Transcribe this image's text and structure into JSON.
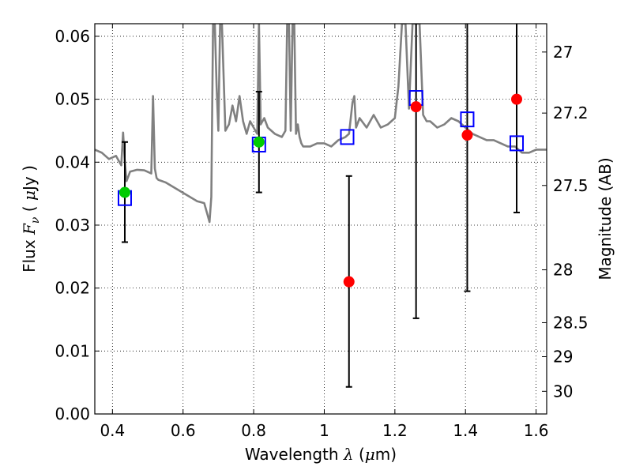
{
  "chart_data": {
    "type": "scatter",
    "xlabel": "Wavelength  λ (μm)",
    "ylabel": "Flux  F_ν  ( μJy )",
    "ylabel_parts": {
      "prefix": "Flux  ",
      "symbol": "F",
      "subscript": "ν",
      "open": "  ( ",
      "mu": "μ",
      "unit": "Jy )"
    },
    "xlabel_parts": {
      "prefix": "Wavelength  ",
      "symbol": "λ",
      "open": " (",
      "mu": "μ",
      "unit": "m)"
    },
    "y2label": "Magnitude (AB)",
    "xlim": [
      0.35,
      1.63
    ],
    "ylim": [
      0.0,
      0.062
    ],
    "xticks": [
      0.4,
      0.6,
      0.8,
      1.0,
      1.2,
      1.4,
      1.6
    ],
    "xtick_labels": [
      "0.4",
      "0.6",
      "0.8",
      "1",
      "1.2",
      "1.4",
      "1.6"
    ],
    "yticks": [
      0.0,
      0.01,
      0.02,
      0.03,
      0.04,
      0.05,
      0.06
    ],
    "ytick_labels": [
      "0.00",
      "0.01",
      "0.02",
      "0.03",
      "0.04",
      "0.05",
      "0.06"
    ],
    "magnitude_ticks": [
      {
        "label": "27",
        "flux": 0.0575
      },
      {
        "label": "27.2",
        "flux": 0.0478
      },
      {
        "label": "27.5",
        "flux": 0.0363
      },
      {
        "label": "28",
        "flux": 0.0229
      },
      {
        "label": "28.5",
        "flux": 0.0145
      },
      {
        "label": "29",
        "flux": 0.0091
      },
      {
        "label": "30",
        "flux": 0.0036
      }
    ],
    "grid": true,
    "series": [
      {
        "kind": "model_spectrum",
        "color": "#808080",
        "x": [
          0.35,
          0.37,
          0.39,
          0.41,
          0.425,
          0.43,
          0.435,
          0.44,
          0.45,
          0.47,
          0.49,
          0.51,
          0.515,
          0.52,
          0.525,
          0.53,
          0.55,
          0.58,
          0.61,
          0.64,
          0.66,
          0.67,
          0.675,
          0.68,
          0.685,
          0.69,
          0.695,
          0.7,
          0.705,
          0.71,
          0.72,
          0.73,
          0.74,
          0.75,
          0.76,
          0.77,
          0.78,
          0.79,
          0.8,
          0.81,
          0.815,
          0.82,
          0.83,
          0.84,
          0.86,
          0.88,
          0.89,
          0.895,
          0.9,
          0.905,
          0.91,
          0.915,
          0.92,
          0.925,
          0.93,
          0.935,
          0.94,
          0.96,
          0.98,
          1.0,
          1.02,
          1.04,
          1.06,
          1.07,
          1.08,
          1.085,
          1.09,
          1.1,
          1.12,
          1.14,
          1.16,
          1.18,
          1.2,
          1.21,
          1.22,
          1.23,
          1.24,
          1.25,
          1.26,
          1.27,
          1.28,
          1.29,
          1.3,
          1.32,
          1.34,
          1.36,
          1.38,
          1.4,
          1.42,
          1.44,
          1.46,
          1.48,
          1.5,
          1.52,
          1.54,
          1.56,
          1.58,
          1.6,
          1.63
        ],
        "y": [
          0.042,
          0.0415,
          0.0405,
          0.041,
          0.0395,
          0.0447,
          0.04,
          0.037,
          0.0385,
          0.0388,
          0.0387,
          0.0382,
          0.0505,
          0.039,
          0.0375,
          0.0372,
          0.0368,
          0.0358,
          0.0348,
          0.0338,
          0.0335,
          0.0315,
          0.0305,
          0.0345,
          0.062,
          0.062,
          0.052,
          0.045,
          0.062,
          0.062,
          0.045,
          0.046,
          0.049,
          0.0465,
          0.0505,
          0.0465,
          0.0445,
          0.0465,
          0.0455,
          0.0445,
          0.062,
          0.046,
          0.047,
          0.0455,
          0.0445,
          0.044,
          0.045,
          0.062,
          0.062,
          0.045,
          0.062,
          0.062,
          0.0445,
          0.046,
          0.044,
          0.043,
          0.0425,
          0.0425,
          0.043,
          0.043,
          0.0425,
          0.0435,
          0.044,
          0.0445,
          0.0495,
          0.0505,
          0.0455,
          0.047,
          0.0455,
          0.0475,
          0.0455,
          0.046,
          0.047,
          0.052,
          0.062,
          0.062,
          0.0485,
          0.062,
          0.062,
          0.062,
          0.0475,
          0.0465,
          0.0465,
          0.0455,
          0.046,
          0.047,
          0.0465,
          0.0455,
          0.0445,
          0.044,
          0.0435,
          0.0435,
          0.043,
          0.0425,
          0.0425,
          0.0415,
          0.0415,
          0.042,
          0.042
        ]
      },
      {
        "kind": "model_photometry",
        "marker": "open-square",
        "color": "#0000ff",
        "x": [
          0.435,
          0.815,
          1.065,
          1.26,
          1.405,
          1.545
        ],
        "y": [
          0.0343,
          0.0428,
          0.044,
          0.0502,
          0.0468,
          0.043
        ]
      },
      {
        "kind": "observed_photometry",
        "marker": "filled-circle",
        "x": [
          0.435,
          0.815,
          1.07,
          1.26,
          1.405,
          1.545
        ],
        "y": [
          0.0352,
          0.0432,
          0.021,
          0.0488,
          0.0443,
          0.05
        ],
        "yerr_low": [
          0.0273,
          0.0352,
          0.0043,
          0.0152,
          0.0195,
          0.032
        ],
        "yerr_high": [
          0.0432,
          0.0512,
          0.0378,
          0.062,
          0.062,
          0.062
        ],
        "colors": [
          "#00cc00",
          "#00cc00",
          "#ff0000",
          "#ff0000",
          "#ff0000",
          "#ff0000"
        ]
      }
    ]
  }
}
